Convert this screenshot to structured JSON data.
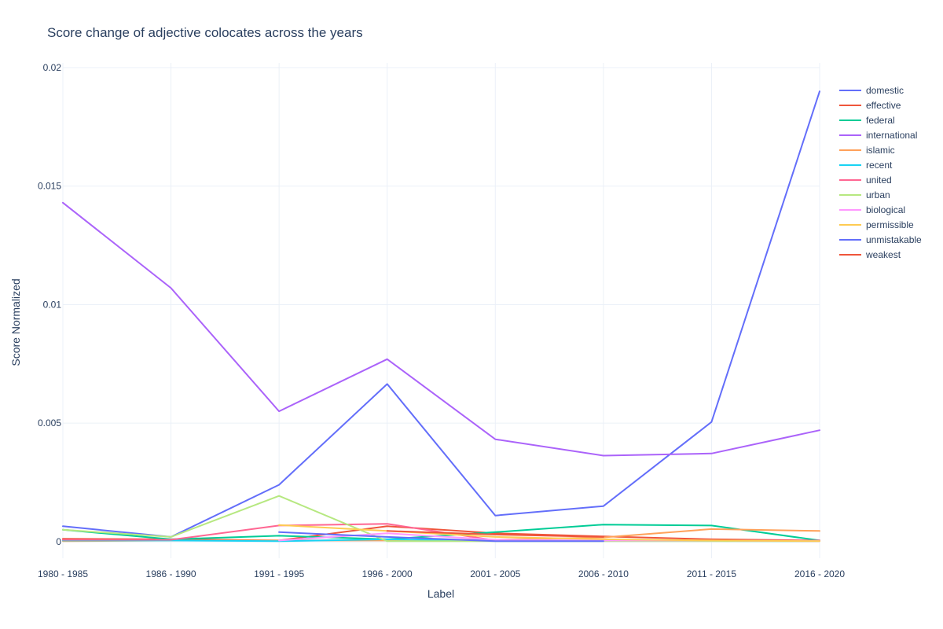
{
  "chart_data": {
    "type": "line",
    "title": "Score change of adjective colocates across the years",
    "xlabel": "Label",
    "ylabel": "Score Normalized",
    "categories": [
      "1980 - 1985",
      "1986 - 1990",
      "1991 - 1995",
      "1996 - 2000",
      "2001 - 2005",
      "2006 - 2010",
      "2011 - 2015",
      "2016 - 2020"
    ],
    "ylim": [
      -0.0007,
      0.0202
    ],
    "yticks": [
      0,
      0.005,
      0.01,
      0.015,
      0.02
    ],
    "ytick_labels": [
      "0",
      "0.005",
      "0.01",
      "0.015",
      "0.02"
    ],
    "grid": true,
    "legend_position": "top-right",
    "series": [
      {
        "name": "domestic",
        "color": "#636efa",
        "values": [
          0.00065,
          0.0002,
          0.0024,
          0.00665,
          0.0011,
          0.0015,
          0.00505,
          0.019
        ]
      },
      {
        "name": "effective",
        "color": "#ef553b",
        "values": [
          0.00012,
          0.0001,
          5e-05,
          0.00065,
          0.00035,
          0.00022,
          0.0001,
          5e-05
        ]
      },
      {
        "name": "federal",
        "color": "#00cc96",
        "values": [
          0.0005,
          0.0001,
          0.00025,
          0.0001,
          0.0004,
          0.00072,
          0.00068,
          5e-05
        ]
      },
      {
        "name": "international",
        "color": "#ab63fa",
        "values": [
          0.0143,
          0.0107,
          0.0055,
          0.0077,
          0.00432,
          0.00363,
          0.00372,
          0.0047
        ]
      },
      {
        "name": "islamic",
        "color": "#ffa15a",
        "values": [
          2e-05,
          5e-05,
          5e-05,
          5e-05,
          8e-05,
          0.00018,
          0.00053,
          0.00045
        ]
      },
      {
        "name": "recent",
        "color": "#19d3f3",
        "values": [
          5e-05,
          5e-05,
          2e-05,
          0.0001,
          5e-05,
          3e-05,
          3e-05,
          2e-05
        ]
      },
      {
        "name": "united",
        "color": "#ff6692",
        "values": [
          8e-05,
          8e-05,
          0.00068,
          0.00075,
          5e-05,
          5e-05,
          3e-05,
          5e-05
        ]
      },
      {
        "name": "urban",
        "color": "#b6e880",
        "values": [
          0.0005,
          0.0002,
          0.00193,
          2e-05,
          2e-05,
          2e-05,
          2e-05,
          2e-05
        ]
      },
      {
        "name": "biological",
        "color": "#ff97ff",
        "values": [
          null,
          null,
          5e-05,
          0.00035,
          8e-05,
          5e-05,
          5e-05,
          2e-05
        ]
      },
      {
        "name": "permissible",
        "color": "#fecb52",
        "values": [
          null,
          null,
          0.0007,
          0.00045,
          0.0002,
          0.0001,
          5e-05,
          2e-05
        ]
      },
      {
        "name": "unmistakable",
        "color": "#636efa",
        "values": [
          null,
          null,
          0.0004,
          0.0002,
          2e-05,
          2e-05,
          null,
          null
        ]
      },
      {
        "name": "weakest",
        "color": "#ef553b",
        "values": [
          null,
          null,
          null,
          0.00045,
          0.0003,
          0.0002,
          null,
          null
        ]
      }
    ]
  }
}
